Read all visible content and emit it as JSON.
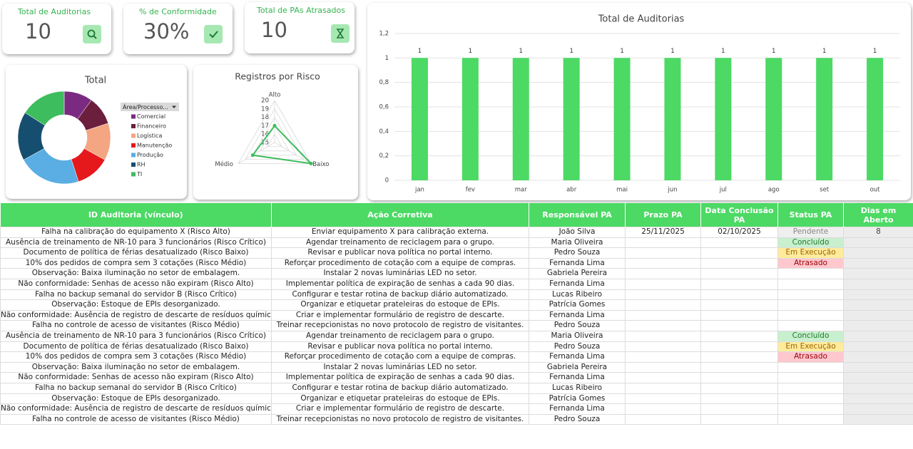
{
  "kpis": [
    {
      "label": "Total de Auditorias",
      "value": 10
    },
    {
      "label": "% de Conformidade",
      "value": "30%"
    },
    {
      "label": "Total de PAs Atrasados",
      "value": 10
    }
  ],
  "chart_data": [
    {
      "type": "pie",
      "title": "Total",
      "legend_title": "Área/Processo...",
      "categories": [
        "Comercial",
        "Financeiro",
        "Logística",
        "Manutenção",
        "Produção",
        "RH",
        "TI"
      ],
      "values": [
        10,
        10,
        13,
        12,
        22,
        17,
        16
      ],
      "colors": [
        "#7b2a82",
        "#6b1f3d",
        "#f4a582",
        "#e5191c",
        "#5aaee3",
        "#164e6f",
        "#3dbd5d"
      ]
    },
    {
      "type": "radar",
      "title": "Registros por Risco",
      "categories": [
        "Alto",
        "Baixo",
        "Médio"
      ],
      "values": [
        17,
        20,
        18
      ],
      "color": "#3dbd5d",
      "rlim": [
        15,
        20
      ],
      "rticks": [
        15,
        16,
        17,
        18,
        19,
        20
      ]
    },
    {
      "type": "bar",
      "title": "Total de Auditorias",
      "categories": [
        "jan",
        "fev",
        "mar",
        "abr",
        "mai",
        "jun",
        "jul",
        "ago",
        "set",
        "out"
      ],
      "values": [
        1,
        1,
        1,
        1,
        1,
        1,
        1,
        1,
        1,
        1
      ],
      "color": "#4cd964",
      "ylim": [
        0,
        1.2
      ],
      "yticks": [
        0,
        {
          "value": 0.2,
          "label": "0,2"
        },
        {
          "value": 0.4,
          "label": "0,4"
        },
        {
          "value": 0.6,
          "label": "0,6"
        },
        {
          "value": 0.8,
          "label": "0,8"
        },
        1,
        {
          "value": 1.2,
          "label": "1,2"
        }
      ],
      "grid": true
    }
  ],
  "table": {
    "header": [
      "ID Auditoria (vínculo)",
      "Ação Corretiva",
      "Responsável PA",
      "Prazo PA",
      "Data Conclusão PA",
      "Status PA",
      "Dias em Aberto"
    ],
    "rows": [
      [
        "Falha na calibração do equipamento X (Risco Alto)",
        "Enviar equipamento X para calibração externa.",
        "João Silva",
        "25/11/2025",
        "02/10/2025",
        "Pendente",
        8
      ],
      [
        "Ausência de treinamento de NR-10 para 3 funcionários (Risco Crítico)",
        "Agendar treinamento de reciclagem para o grupo.",
        "Maria Oliveira",
        null,
        null,
        "Concluído",
        null
      ],
      [
        "Documento de política de férias desatualizado (Risco Baixo)",
        "Revisar e publicar nova política no portal interno.",
        "Pedro Souza",
        null,
        null,
        "Em Execução",
        null
      ],
      [
        "10% dos pedidos de compra sem 3 cotações (Risco Médio)",
        "Reforçar procedimento de cotação com a equipe de compras.",
        "Fernanda Lima",
        null,
        null,
        "Atrasado",
        null
      ],
      [
        "Observação: Baixa iluminação no setor de embalagem.",
        "Instalar 2 novas luminárias LED no setor.",
        "Gabriela Pereira",
        null,
        null,
        null,
        null
      ],
      [
        "Não conformidade: Senhas de acesso não expiram (Risco Alto)",
        "Implementar política de expiração de senhas a cada 90 dias.",
        "Fernanda Lima",
        null,
        null,
        null,
        null
      ],
      [
        "Falha no backup semanal do servidor B (Risco Crítico)",
        "Configurar e testar rotina de backup diário automatizado.",
        "Lucas Ribeiro",
        null,
        null,
        null,
        null
      ],
      [
        "Observação: Estoque de EPIs desorganizado.",
        "Organizar e etiquetar prateleiras do estoque de EPIs.",
        "Patrícia Gomes",
        null,
        null,
        null,
        null
      ],
      [
        "Não conformidade: Ausência de registro de descarte de resíduos químicos.",
        "Criar e implementar formulário de registro de descarte.",
        "Fernanda Lima",
        null,
        null,
        null,
        null
      ],
      [
        "Falha no controle de acesso de visitantes (Risco Médio)",
        "Treinar recepcionistas no novo protocolo de registro de visitantes.",
        "Pedro Souza",
        null,
        null,
        null,
        null
      ],
      [
        "Ausência de treinamento de NR-10 para 3 funcionários (Risco Crítico)",
        "Agendar treinamento de reciclagem para o grupo.",
        "Maria Oliveira",
        null,
        null,
        "Concluído",
        null
      ],
      [
        "Documento de política de férias desatualizado (Risco Baixo)",
        "Revisar e publicar nova política no portal interno.",
        "Pedro Souza",
        null,
        null,
        "Em Execução",
        null
      ],
      [
        "10% dos pedidos de compra sem 3 cotações (Risco Médio)",
        "Reforçar procedimento de cotação com a equipe de compras.",
        "Fernanda Lima",
        null,
        null,
        "Atrasado",
        null
      ],
      [
        "Observação: Baixa iluminação no setor de embalagem.",
        "Instalar 2 novas luminárias LED no setor.",
        "Gabriela Pereira",
        null,
        null,
        null,
        null
      ],
      [
        "Não conformidade: Senhas de acesso não expiram (Risco Alto)",
        "Implementar política de expiração de senhas a cada 90 dias.",
        "Fernanda Lima",
        null,
        null,
        null,
        null
      ],
      [
        "Falha no backup semanal do servidor B (Risco Crítico)",
        "Configurar e testar rotina de backup diário automatizado.",
        "Lucas Ribeiro",
        null,
        null,
        null,
        null
      ],
      [
        "Observação: Estoque de EPIs desorganizado.",
        "Organizar e etiquetar prateleiras do estoque de EPIs.",
        "Patrícia Gomes",
        null,
        null,
        null,
        null
      ],
      [
        "Não conformidade: Ausência de registro de descarte de resíduos químicos.",
        "Criar e implementar formulário de registro de descarte.",
        "Fernanda Lima",
        null,
        null,
        null,
        null
      ],
      [
        "Falha no controle de acesso de visitantes (Risco Médio)",
        "Treinar recepcionistas no novo protocolo de registro de visitantes.",
        "Pedro Souza",
        null,
        null,
        null,
        null
      ]
    ]
  }
}
